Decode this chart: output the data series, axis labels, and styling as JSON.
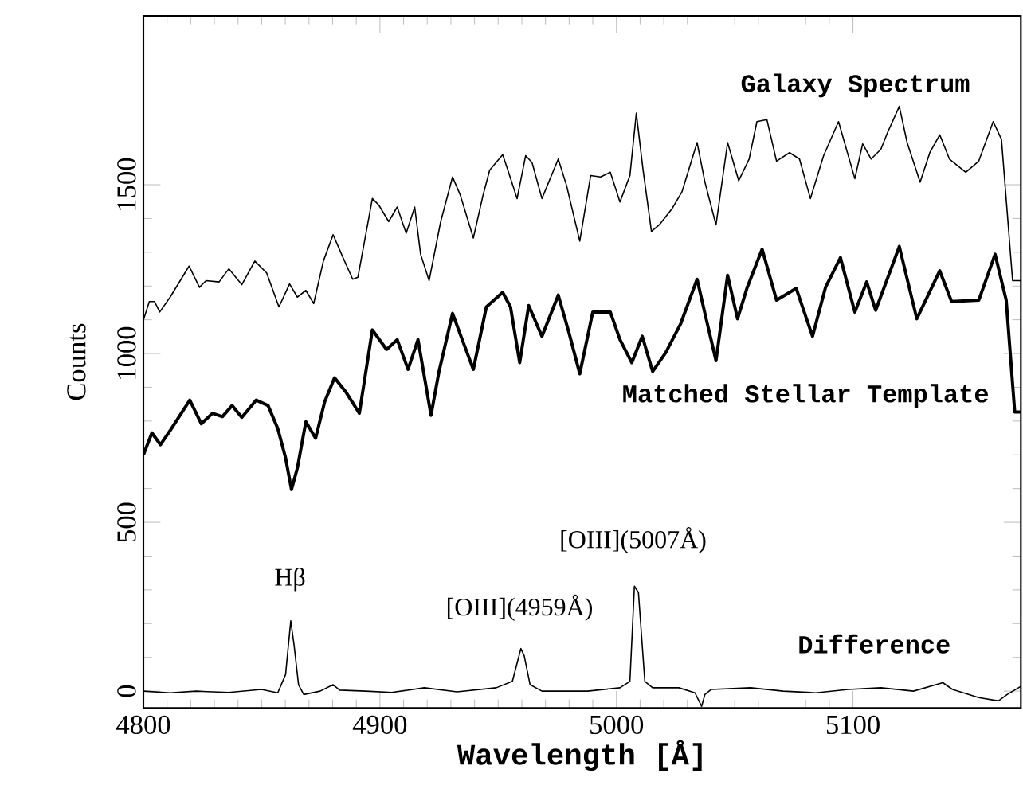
{
  "chart_data": {
    "type": "line",
    "xlabel": "Wavelength [Å]",
    "ylabel": "Counts",
    "xlim": [
      4800,
      5171
    ],
    "ylim": [
      -50,
      2000
    ],
    "xticks": [
      4800,
      4900,
      5000,
      5100
    ],
    "yticks": [
      0,
      500,
      1000,
      1500
    ],
    "grid": false,
    "legend": false,
    "marker": "none",
    "series": [
      {
        "name": "Galaxy Spectrum",
        "color": "#000000",
        "x": [
          4800,
          4802.5,
          4804.7,
          4806.9,
          4811.3,
          4819.3,
          4823.7,
          4826.5,
          4832,
          4836.1,
          4841.6,
          4847.1,
          4852.1,
          4857.3,
          4861.8,
          4865.1,
          4868.7,
          4872,
          4876.1,
          4880.2,
          4884.4,
          4888.5,
          4890.7,
          4896.8,
          4899.5,
          4903.7,
          4907.3,
          4911.1,
          4914.7,
          4917.2,
          4920.8,
          4925.7,
          4930.7,
          4934,
          4939.5,
          4943.6,
          4946.4,
          4951.9,
          4954.1,
          4958,
          4961.6,
          4964.3,
          4968.5,
          4975.4,
          4978.9,
          4984.5,
          4989.1,
          4993.3,
          4997.4,
          5001.5,
          5005.7,
          5008.4,
          5011.2,
          5014.8,
          5018.1,
          5023.6,
          5027.7,
          5034.1,
          5037.4,
          5042.1,
          5047,
          5051.7,
          5056.1,
          5059.4,
          5063.6,
          5067.7,
          5073.2,
          5077.4,
          5082,
          5087.6,
          5093.9,
          5100.8,
          5104.1,
          5107.7,
          5111.8,
          5114.6,
          5119.6,
          5122.9,
          5128.4,
          5132.5,
          5136.7,
          5140.8,
          5147.7,
          5153.2,
          5159.3,
          5162.8,
          5167.5,
          5171
        ],
        "values": [
          1099,
          1154,
          1154,
          1123,
          1167,
          1259,
          1196,
          1216,
          1212,
          1251,
          1204,
          1274,
          1239,
          1138,
          1206,
          1167,
          1187,
          1148,
          1274,
          1352,
          1284,
          1220,
          1226,
          1459,
          1440,
          1391,
          1434,
          1356,
          1434,
          1294,
          1216,
          1391,
          1523,
          1469,
          1342,
          1469,
          1543,
          1589,
          1543,
          1459,
          1586,
          1566,
          1459,
          1576,
          1498,
          1333,
          1527,
          1523,
          1537,
          1449,
          1527,
          1712,
          1547,
          1362,
          1381,
          1430,
          1479,
          1625,
          1508,
          1381,
          1625,
          1512,
          1576,
          1687,
          1693,
          1570,
          1595,
          1576,
          1459,
          1586,
          1687,
          1518,
          1621,
          1576,
          1605,
          1654,
          1732,
          1625,
          1508,
          1595,
          1648,
          1576,
          1537,
          1570,
          1687,
          1634,
          1216,
          1216
        ]
      },
      {
        "name": "Matched Stellar Template",
        "color": "#000000",
        "x": [
          4800,
          4803.6,
          4807.2,
          4811.9,
          4819.6,
          4824.5,
          4829.2,
          4833.4,
          4837.5,
          4841.6,
          4847.7,
          4852.7,
          4856.8,
          4860.1,
          4862.6,
          4865.1,
          4868.7,
          4872.8,
          4876.6,
          4880.8,
          4885.7,
          4891.3,
          4896.8,
          4902.8,
          4907.3,
          4911.9,
          4916.1,
          4921.6,
          4924.9,
          4930.7,
          4934.8,
          4939.5,
          4945,
          4951.9,
          4955.2,
          4959.1,
          4962.9,
          4968.5,
          4975.4,
          4980,
          4984.5,
          4990,
          4997.4,
          5001.5,
          5006.5,
          5010.9,
          5015.3,
          5020.8,
          5027.2,
          5034.1,
          5037.4,
          5042.1,
          5047,
          5051.2,
          5055.3,
          5061.6,
          5067.7,
          5076,
          5082.9,
          5088.4,
          5094.7,
          5100.8,
          5105.8,
          5109.6,
          5119.6,
          5127,
          5136.7,
          5141.7,
          5153.2,
          5160.1,
          5164.8,
          5168.4,
          5171
        ],
        "values": [
          700,
          765,
          730,
          778,
          862,
          792,
          823,
          813,
          846,
          811,
          862,
          846,
          778,
          691,
          597,
          661,
          798,
          749,
          856,
          928,
          885,
          823,
          1070,
          1012,
          1041,
          953,
          1041,
          817,
          944,
          1119,
          1041,
          953,
          1138,
          1181,
          1138,
          973,
          1142,
          1051,
          1173,
          1060,
          940,
          1123,
          1123,
          1041,
          973,
          1051,
          947,
          1002,
          1089,
          1220,
          1119,
          979,
          1232,
          1103,
          1196,
          1309,
          1158,
          1193,
          1051,
          1196,
          1284,
          1123,
          1212,
          1128,
          1317,
          1103,
          1245,
          1154,
          1158,
          1294,
          1158,
          827,
          827
        ]
      },
      {
        "name": "Difference",
        "color": "#000000",
        "x": [
          4800,
          4811.3,
          4822.3,
          4836.1,
          4849.9,
          4856.8,
          4860.1,
          4862.3,
          4863.7,
          4865.6,
          4867.8,
          4874.7,
          4880.2,
          4883,
          4894,
          4905,
          4918.8,
          4932.6,
          4949.2,
          4956,
          4959.6,
          4961,
          4963.5,
          4968.5,
          4987.8,
          5001.5,
          5005.7,
          5007.6,
          5009.3,
          5012,
          5015.3,
          5026.4,
          5033.2,
          5036,
          5037.4,
          5040.1,
          5056.7,
          5070.5,
          5084.3,
          5098,
          5111.8,
          5125.6,
          5138,
          5142.1,
          5153.2,
          5161.5,
          5165.2,
          5171
        ],
        "values": [
          0,
          -5,
          0,
          -4,
          5,
          -5,
          49,
          208,
          136,
          19,
          -10,
          0,
          19,
          3,
          0,
          -4,
          10,
          -2,
          10,
          29,
          126,
          105,
          19,
          0,
          0,
          10,
          29,
          311,
          292,
          29,
          10,
          10,
          -5,
          -45,
          -10,
          5,
          10,
          0,
          -5,
          5,
          10,
          0,
          25,
          5,
          -19,
          -29,
          -10,
          14
        ]
      }
    ],
    "annotations": [
      "Hβ",
      "[OIII](4959Å)",
      "[OIII](5007Å)"
    ]
  }
}
